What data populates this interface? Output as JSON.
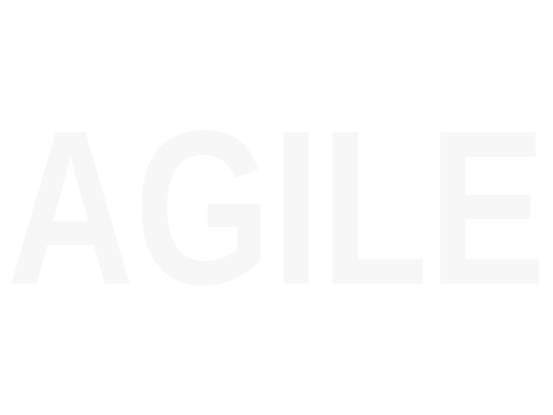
{
  "wordmark": {
    "text": "AGILE",
    "fill_color": "#f7f7f7",
    "background_color": "#ffffff"
  }
}
